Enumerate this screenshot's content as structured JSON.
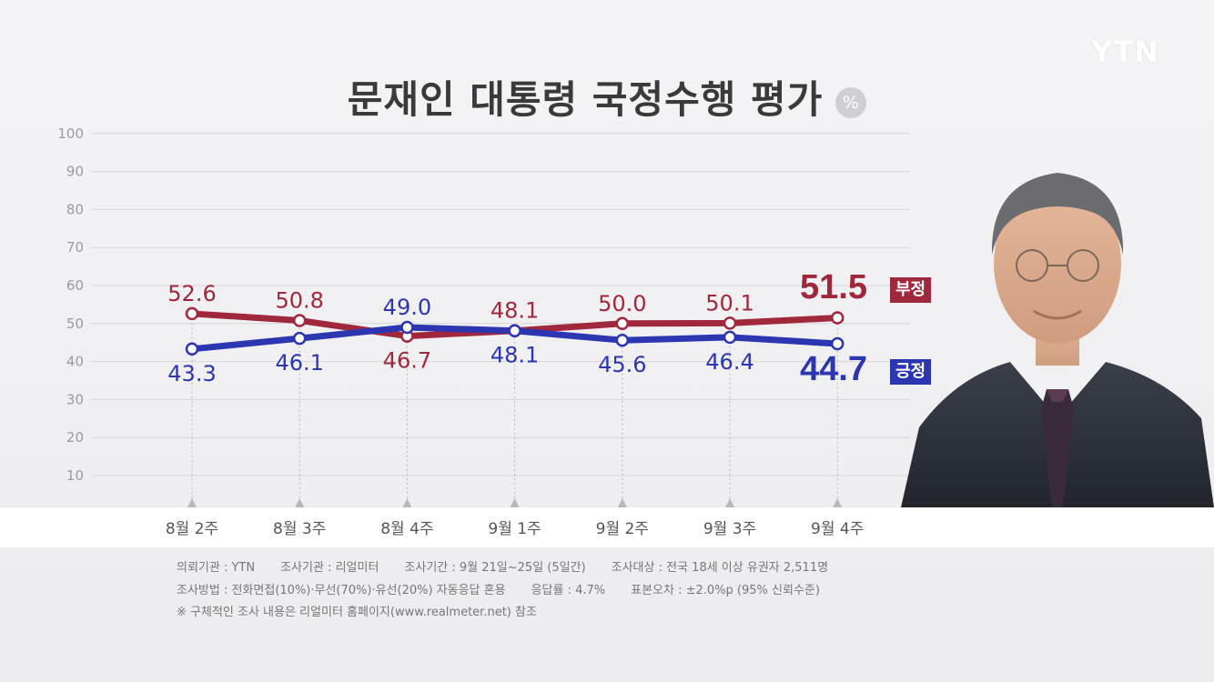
{
  "title": "문재인 대통령 국정수행 평가",
  "unit_badge": "%",
  "logo": "YTN",
  "chart_data": {
    "type": "line",
    "title": "문재인 대통령 국정수행 평가",
    "categories": [
      "8월 2주",
      "8월 3주",
      "8월 4주",
      "9월 1주",
      "9월 2주",
      "9월 3주",
      "9월 4주"
    ],
    "y_ticks": [
      "100",
      "90",
      "80",
      "70",
      "60",
      "50",
      "40",
      "30",
      "20",
      "10"
    ],
    "ylim": [
      0,
      100
    ],
    "grid": true,
    "series": [
      {
        "name": "부정",
        "color": "#a0283c",
        "values": [
          52.6,
          50.8,
          46.7,
          48.1,
          50.0,
          50.1,
          51.5
        ],
        "labels": [
          "52.6",
          "50.8",
          "46.7",
          "48.1",
          "50.0",
          "50.1",
          "51.5"
        ]
      },
      {
        "name": "긍정",
        "color": "#2b36b0",
        "values": [
          43.3,
          46.1,
          49.0,
          48.1,
          45.6,
          46.4,
          44.7
        ],
        "labels": [
          "43.3",
          "46.1",
          "49.0",
          "48.1",
          "45.6",
          "46.4",
          "44.7"
        ]
      }
    ]
  },
  "footer": {
    "line1": [
      "의뢰기관 : YTN",
      "조사기관 : 리얼미터",
      "조사기간 : 9월 21일~25일 (5일간)",
      "조사대상 : 전국 18세 이상 유권자 2,511명"
    ],
    "line2": [
      "조사방법 : 전화면접(10%)·무선(70%)·유선(20%) 자동응답 혼용",
      "응답률 : 4.7%",
      "표본오차 : ±2.0%p (95% 신뢰수준)"
    ],
    "line3": "※ 구체적인 조사 내용은 리얼미터 홈페이지(www.realmeter.net) 참조"
  },
  "colors": {
    "negative": "#a0283c",
    "positive": "#2b36b0"
  }
}
